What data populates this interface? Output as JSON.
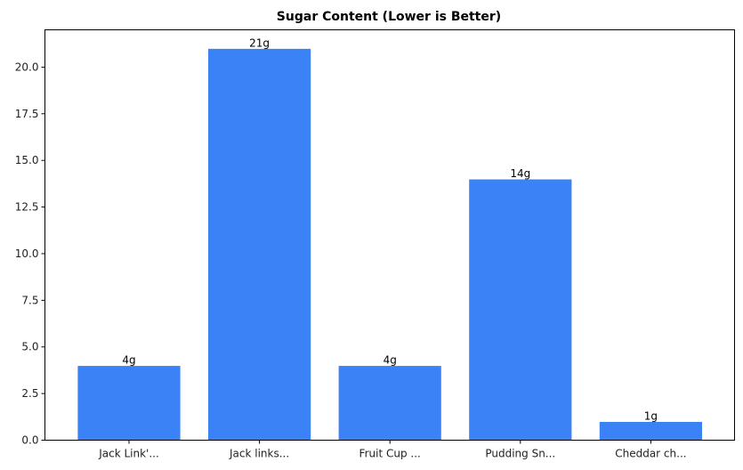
{
  "chart_data": {
    "type": "bar",
    "title": "Sugar Content (Lower is Better)",
    "xlabel": "",
    "ylabel": "",
    "categories": [
      "Jack Link'...",
      "Jack links...",
      "Fruit Cup ...",
      "Pudding Sn...",
      "Cheddar ch..."
    ],
    "values": [
      4,
      21,
      4,
      14,
      1
    ],
    "data_labels": [
      "4g",
      "21g",
      "4g",
      "14g",
      "1g"
    ],
    "ylim": [
      0,
      22
    ],
    "yticks": [
      "0.0",
      "2.5",
      "5.0",
      "7.5",
      "10.0",
      "12.5",
      "15.0",
      "17.5",
      "20.0"
    ],
    "bar_color": "#3b82f6",
    "grid": false,
    "legend": null
  }
}
